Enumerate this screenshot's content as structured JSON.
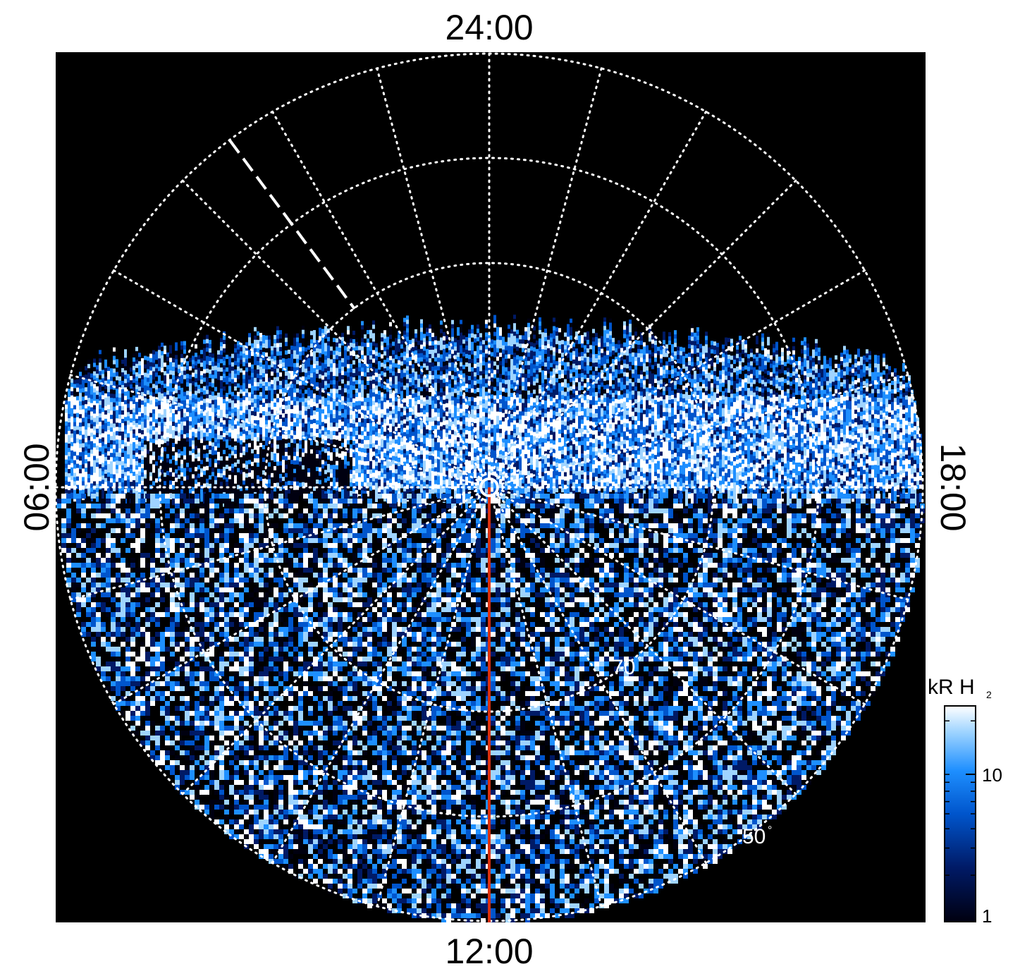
{
  "chart_data": {
    "type": "heatmap",
    "projection": "polar (local time / latitude)",
    "local_time_labels": {
      "top": "24:00",
      "bottom": "12:00",
      "left": "06:00",
      "right": "18:00"
    },
    "latitude_labels": [
      {
        "value": 70,
        "text": "70"
      },
      {
        "value": 50,
        "text": "50"
      }
    ],
    "degree_symbol": "°",
    "grid": true,
    "grid_style": "dotted",
    "data_region": "emission observed from latitude band across nightside-to-dayside; upper (night) sector near pole empty",
    "colorbar": {
      "title": "kR H",
      "title_subscript": "2",
      "scale": "log",
      "range": [
        1,
        25
      ],
      "ticks": [
        {
          "value": 1,
          "label": "1"
        },
        {
          "value": 10,
          "label": "10"
        }
      ],
      "colors": [
        "#000010",
        "#001a66",
        "#0055cc",
        "#1e8fff",
        "#9fd4ff",
        "#ffffff"
      ]
    },
    "annotations": [
      {
        "type": "line",
        "color": "#d93010",
        "description": "meridian from pole toward 12:00"
      },
      {
        "type": "dashed-line",
        "color": "#ffffff",
        "description": "dashed marker in post-midnight sector"
      }
    ]
  }
}
